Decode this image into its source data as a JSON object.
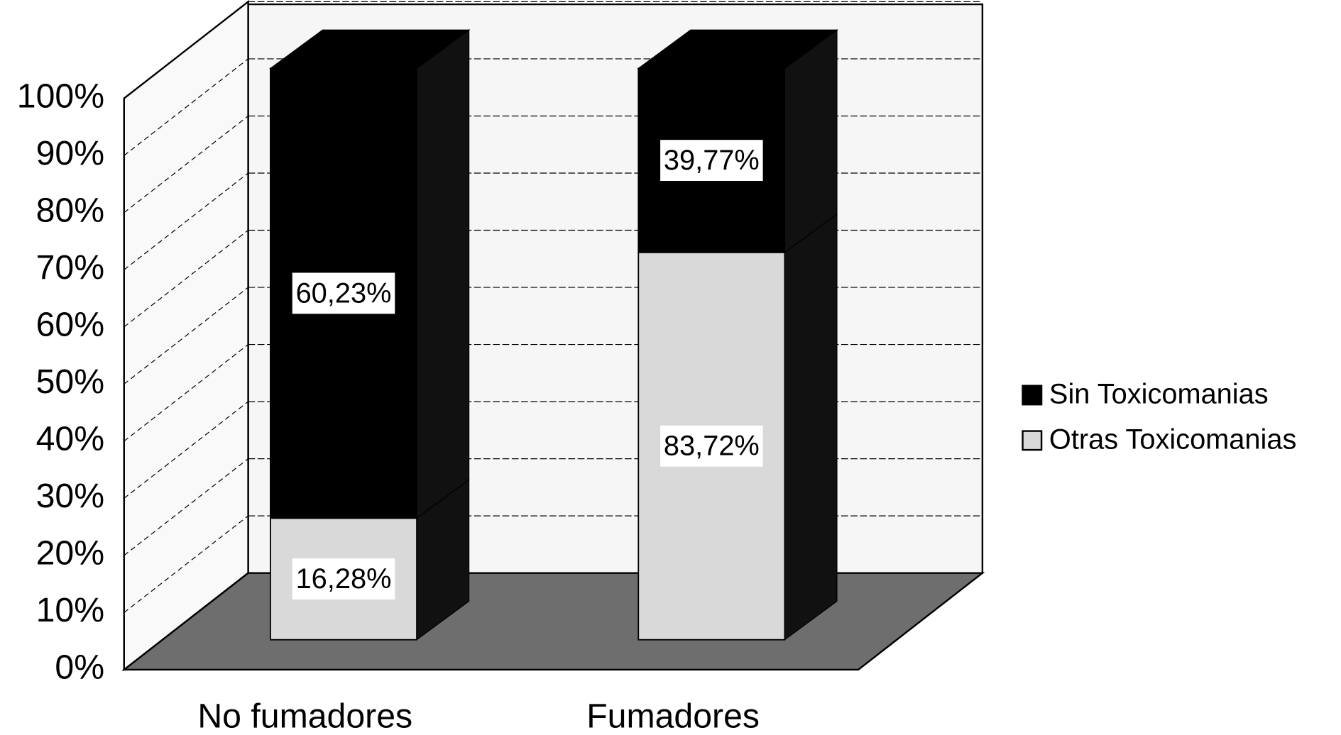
{
  "chart_data": {
    "type": "bar",
    "stacking": "percent",
    "categories": [
      "No fumadores",
      "Fumadores"
    ],
    "series": [
      {
        "name": "Sin Toxicomanias",
        "color": "#000000",
        "values": [
          60.23,
          39.77
        ],
        "value_labels": [
          "60,23%",
          "39,77%"
        ]
      },
      {
        "name": "Otras Toxicomanias",
        "color": "#d9d9d9",
        "values": [
          16.28,
          83.72
        ],
        "value_labels": [
          "16,28%",
          "83,72%"
        ]
      }
    ],
    "ylim": [
      0,
      100
    ],
    "yticks": [
      {
        "value": 0,
        "label": "0%"
      },
      {
        "value": 10,
        "label": "10%"
      },
      {
        "value": 20,
        "label": "20%"
      },
      {
        "value": 30,
        "label": "30%"
      },
      {
        "value": 40,
        "label": "40%"
      },
      {
        "value": 50,
        "label": "50%"
      },
      {
        "value": 60,
        "label": "60%"
      },
      {
        "value": 70,
        "label": "70%"
      },
      {
        "value": 80,
        "label": "80%"
      },
      {
        "value": 90,
        "label": "90%"
      },
      {
        "value": 100,
        "label": "100%"
      }
    ],
    "grid": true,
    "legend": "right"
  }
}
